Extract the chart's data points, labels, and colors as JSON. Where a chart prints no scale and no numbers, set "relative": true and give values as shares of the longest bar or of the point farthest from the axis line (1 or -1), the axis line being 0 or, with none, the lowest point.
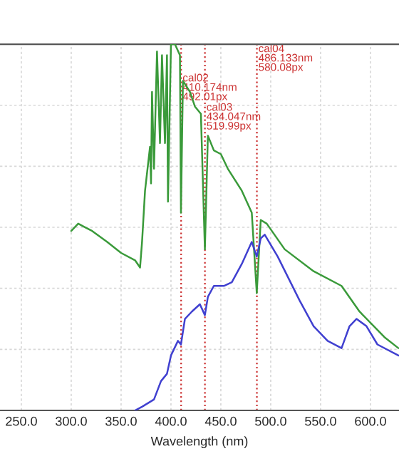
{
  "chart_data": {
    "type": "line",
    "relative": true,
    "xlabel": "Wavelength (nm)",
    "xlim": [
      228.6,
      628.6
    ],
    "xticks": [
      {
        "value": 250,
        "label": "250.0"
      },
      {
        "value": 300,
        "label": "300.0"
      },
      {
        "value": 350,
        "label": "350.0"
      },
      {
        "value": 400,
        "label": "400.0"
      },
      {
        "value": 450,
        "label": "450.0"
      },
      {
        "value": 500,
        "label": "500.0"
      },
      {
        "value": 550,
        "label": "550.0"
      },
      {
        "value": 600,
        "label": "600.0"
      }
    ],
    "grid": true,
    "series": [
      {
        "color": "#3a9a3a",
        "x": [
          300,
          307,
          314,
          321,
          336,
          350,
          364,
          369,
          371,
          374,
          379,
          380,
          381,
          383,
          386,
          389,
          391,
          394,
          396,
          397,
          400,
          404,
          409,
          410,
          412,
          419,
          424,
          430,
          434,
          437,
          443,
          450,
          457,
          471,
          481,
          486,
          490,
          496,
          514,
          543,
          571,
          589,
          614,
          628
        ],
        "values": [
          0.49,
          0.51,
          0.5,
          0.49,
          0.46,
          0.43,
          0.41,
          0.39,
          0.46,
          0.6,
          0.72,
          0.62,
          0.87,
          0.66,
          0.98,
          0.73,
          0.97,
          0.73,
          0.97,
          0.57,
          1.0,
          1.0,
          0.97,
          0.54,
          0.9,
          0.87,
          0.83,
          0.81,
          0.44,
          0.75,
          0.71,
          0.7,
          0.66,
          0.6,
          0.54,
          0.32,
          0.52,
          0.51,
          0.44,
          0.38,
          0.34,
          0.27,
          0.2,
          0.17
        ]
      },
      {
        "color": "#4040d0",
        "x": [
          364,
          371,
          383,
          390,
          396,
          400,
          407,
          410,
          414,
          421,
          429,
          434,
          437,
          443,
          453,
          461,
          471,
          481,
          486,
          490,
          494,
          507,
          529,
          543,
          557,
          571,
          579,
          586,
          596,
          607,
          628
        ],
        "values": [
          0.0,
          0.01,
          0.03,
          0.08,
          0.1,
          0.15,
          0.19,
          0.18,
          0.25,
          0.27,
          0.29,
          0.26,
          0.31,
          0.34,
          0.34,
          0.35,
          0.4,
          0.46,
          0.42,
          0.47,
          0.48,
          0.42,
          0.3,
          0.23,
          0.19,
          0.17,
          0.23,
          0.25,
          0.23,
          0.18,
          0.15
        ]
      }
    ],
    "ref_lines": [
      {
        "axis": "x",
        "value": 410.174,
        "label": "cal02\n410.174nm\n492.01px",
        "color": "#cc3333",
        "line_style": "dotted"
      },
      {
        "axis": "x",
        "value": 434.047,
        "label": "cal03\n434.047nm\n519.99px",
        "color": "#cc3333",
        "line_style": "dotted"
      },
      {
        "axis": "x",
        "value": 486.133,
        "label": "cal04\n486.133nm\n580.08px",
        "color": "#cc3333",
        "line_style": "dotted"
      }
    ]
  }
}
